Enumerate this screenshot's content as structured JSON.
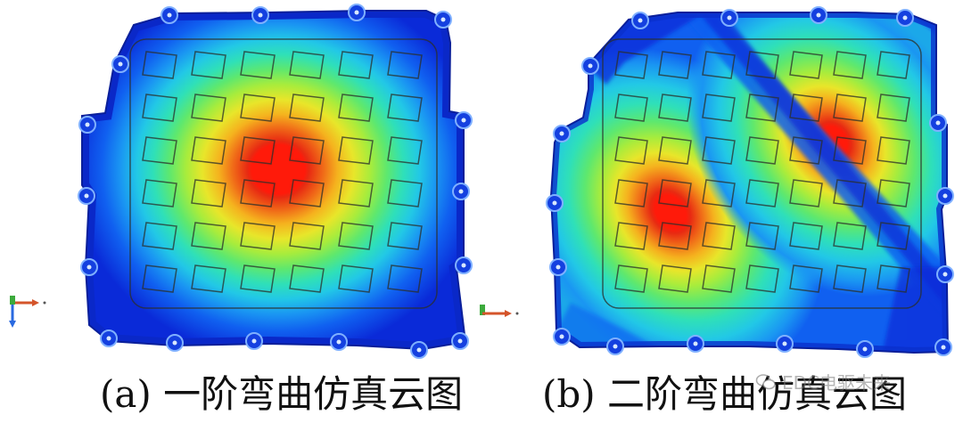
{
  "captions": {
    "a": "(a)  一阶弯曲仿真云图",
    "b": "(b)  二阶弯曲仿真云图"
  },
  "watermark": "EDC电驱未来",
  "colors": {
    "contour": [
      "#0a2ad8",
      "#1060f0",
      "#1a96f2",
      "#22c8e6",
      "#2fe0b8",
      "#5ee86e",
      "#a8ec3c",
      "#e8e62a",
      "#f5b21e",
      "#f06a18",
      "#e82a12",
      "#ff1a0a"
    ],
    "mesh_line": "#2b2f2a",
    "hole": "#7fb0ff"
  },
  "icons": [
    "coordinate-triad-icon",
    "wechat-watermark-icon"
  ]
}
